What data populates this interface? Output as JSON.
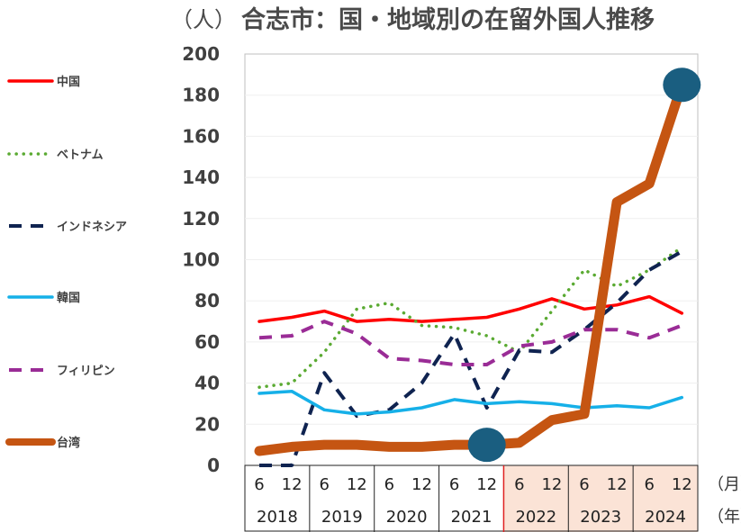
{
  "chart_data": {
    "type": "line",
    "title": "合志市：国・地域別の在留外国人推移",
    "unit_label": "（人）",
    "month_suffix": "（月）",
    "year_suffix": "（年）",
    "ylim": [
      0,
      200
    ],
    "y_ticks": [
      0,
      20,
      40,
      60,
      80,
      100,
      120,
      140,
      160,
      180,
      200
    ],
    "month_labels": [
      "6",
      "12",
      "6",
      "12",
      "6",
      "12",
      "6",
      "12",
      "6",
      "12",
      "6",
      "12",
      "6",
      "12"
    ],
    "year_labels": [
      "2018",
      "2019",
      "2020",
      "2021",
      "2022",
      "2023",
      "2024"
    ],
    "highlighted_years": [
      "2022",
      "2023",
      "2024"
    ],
    "series": [
      {
        "name": "中国",
        "color": "#ff0000",
        "style": "solid",
        "values": [
          70,
          72,
          75,
          70,
          71,
          70,
          71,
          72,
          76,
          81,
          76,
          78,
          82,
          74
        ]
      },
      {
        "name": "ベトナム",
        "color": "#5aaa32",
        "style": "dotted",
        "values": [
          38,
          40,
          55,
          76,
          79,
          68,
          67,
          63,
          55,
          75,
          95,
          87,
          95,
          106
        ]
      },
      {
        "name": "インドネシア",
        "color": "#0f2350",
        "style": "dashed",
        "values": [
          0,
          0,
          45,
          24,
          27,
          40,
          64,
          28,
          56,
          55,
          66,
          79,
          95,
          104
        ]
      },
      {
        "name": "韓国",
        "color": "#16b0e8",
        "style": "solid",
        "values": [
          35,
          36,
          27,
          25,
          26,
          28,
          32,
          30,
          31,
          30,
          28,
          29,
          28,
          33
        ]
      },
      {
        "name": "フィリピン",
        "color": "#9a2c96",
        "style": "dashed",
        "values": [
          62,
          63,
          70,
          64,
          52,
          51,
          49,
          49,
          58,
          60,
          66,
          66,
          62,
          68
        ]
      },
      {
        "name": "台湾",
        "color": "#c55512",
        "style": "bold",
        "values": [
          7,
          9,
          10,
          10,
          9,
          9,
          10,
          10,
          11,
          22,
          25,
          128,
          137,
          185
        ]
      }
    ],
    "markers": [
      {
        "series": "台湾",
        "index": 7,
        "color": "#1a5e80"
      },
      {
        "series": "台湾",
        "index": 13,
        "color": "#1a5e80"
      }
    ]
  }
}
